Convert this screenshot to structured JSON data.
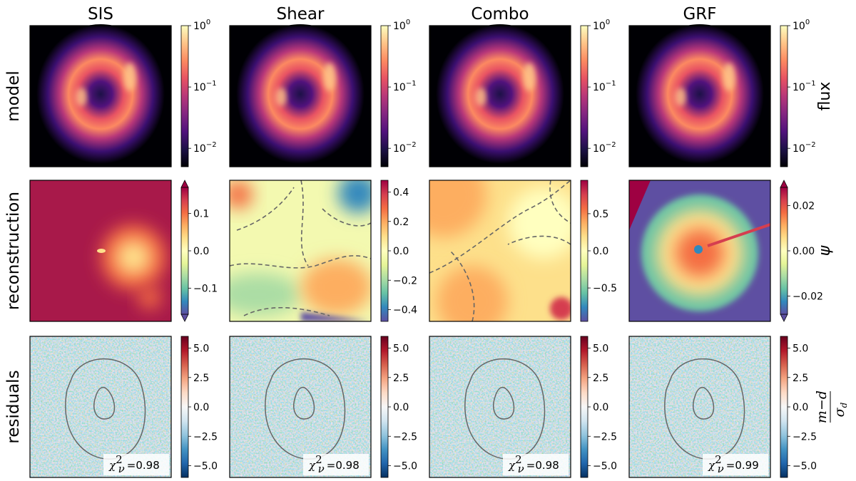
{
  "chart_data": {
    "type": "heatmap",
    "columns": [
      "SIS",
      "Shear",
      "Combo",
      "GRF"
    ],
    "rows": [
      {
        "name": "model",
        "colormap": "magma",
        "scale": "log",
        "colorbar_label": "flux",
        "panels": [
          {
            "column": "SIS",
            "ticks": [
              {
                "base": "10",
                "exp": "0"
              },
              {
                "base": "10",
                "exp": "−1"
              },
              {
                "base": "10",
                "exp": "−2"
              }
            ]
          },
          {
            "column": "Shear",
            "ticks": [
              {
                "base": "10",
                "exp": "0"
              },
              {
                "base": "10",
                "exp": "−1"
              },
              {
                "base": "10",
                "exp": "−2"
              }
            ]
          },
          {
            "column": "Combo",
            "ticks": [
              {
                "base": "10",
                "exp": "0"
              },
              {
                "base": "10",
                "exp": "−1"
              },
              {
                "base": "10",
                "exp": "−2"
              }
            ]
          },
          {
            "column": "GRF",
            "ticks": [
              {
                "base": "10",
                "exp": "0"
              },
              {
                "base": "10",
                "exp": "−1"
              },
              {
                "base": "10",
                "exp": "−2"
              }
            ]
          }
        ]
      },
      {
        "name": "reconstruction",
        "colormap": "Spectral_r",
        "scale": "linear",
        "colorbar_label": "ψ",
        "panels": [
          {
            "column": "SIS",
            "range": [
              -0.17,
              0.17
            ],
            "ticks": [
              0.1,
              0.0,
              -0.1
            ],
            "tick_labels": [
              "0.1",
              "0.0",
              "−0.1"
            ]
          },
          {
            "column": "Shear",
            "range": [
              -0.48,
              0.48
            ],
            "ticks": [
              0.4,
              0.2,
              0.0,
              -0.2,
              -0.4
            ],
            "tick_labels": [
              "0.4",
              "0.2",
              "0.0",
              "−0.2",
              "−0.4"
            ]
          },
          {
            "column": "Combo",
            "range": [
              -0.95,
              0.95
            ],
            "ticks": [
              0.5,
              0.0,
              -0.5
            ],
            "tick_labels": [
              "0.5",
              "0.0",
              "−0.5"
            ]
          },
          {
            "column": "GRF",
            "range": [
              -0.028,
              0.028
            ],
            "ticks": [
              0.02,
              0.0,
              -0.02
            ],
            "tick_labels": [
              "0.02",
              "0.00",
              "−0.02"
            ]
          }
        ]
      },
      {
        "name": "residuals",
        "colormap": "RdBu_r",
        "scale": "linear",
        "colorbar_label": "m−d / σd",
        "colorbar_label_parts": {
          "num": "m−d",
          "den": "σ",
          "den_sub": "d"
        },
        "panels": [
          {
            "column": "SIS",
            "range": [
              -6,
              6
            ],
            "ticks": [
              5.0,
              2.5,
              0.0,
              -2.5,
              -5.0
            ],
            "tick_labels": [
              "5.0",
              "2.5",
              "0.0",
              "−2.5",
              "−5.0"
            ],
            "chi2_label": "χ",
            "chi2_sup": "2",
            "chi2_sub": "ν",
            "chi2_value": "=0.98"
          },
          {
            "column": "Shear",
            "range": [
              -6,
              6
            ],
            "ticks": [
              5.0,
              2.5,
              0.0,
              -2.5,
              -5.0
            ],
            "tick_labels": [
              "5.0",
              "2.5",
              "0.0",
              "−2.5",
              "−5.0"
            ],
            "chi2_label": "χ",
            "chi2_sup": "2",
            "chi2_sub": "ν",
            "chi2_value": "=0.98"
          },
          {
            "column": "Combo",
            "range": [
              -6,
              6
            ],
            "ticks": [
              5.0,
              2.5,
              0.0,
              -2.5,
              -5.0
            ],
            "tick_labels": [
              "5.0",
              "2.5",
              "0.0",
              "−2.5",
              "−5.0"
            ],
            "chi2_label": "χ",
            "chi2_sup": "2",
            "chi2_sub": "ν",
            "chi2_value": "=0.98"
          },
          {
            "column": "GRF",
            "range": [
              -6,
              6
            ],
            "ticks": [
              5.0,
              2.5,
              0.0,
              -2.5,
              -5.0
            ],
            "tick_labels": [
              "5.0",
              "2.5",
              "0.0",
              "−2.5",
              "−5.0"
            ],
            "chi2_label": "χ",
            "chi2_sup": "2",
            "chi2_sub": "ν",
            "chi2_value": "=0.99"
          }
        ]
      }
    ],
    "colorbar_gradients": {
      "magma": [
        "#000004",
        "#1d1147",
        "#51127c",
        "#832681",
        "#b73779",
        "#e75263",
        "#fc8961",
        "#fec488",
        "#fcfdbf"
      ],
      "Spectral_r": [
        "#5e4fa2",
        "#3288bd",
        "#66c2a5",
        "#abdda4",
        "#e6f598",
        "#ffffbf",
        "#fee08b",
        "#fdae61",
        "#f46d43",
        "#d53e4f",
        "#9e0142"
      ],
      "RdBu_r": [
        "#053061",
        "#2166ac",
        "#4393c3",
        "#92c5de",
        "#d1e5f0",
        "#f7f7f7",
        "#fddbc7",
        "#f4a582",
        "#d6604d",
        "#b2182b",
        "#67001f"
      ]
    }
  }
}
